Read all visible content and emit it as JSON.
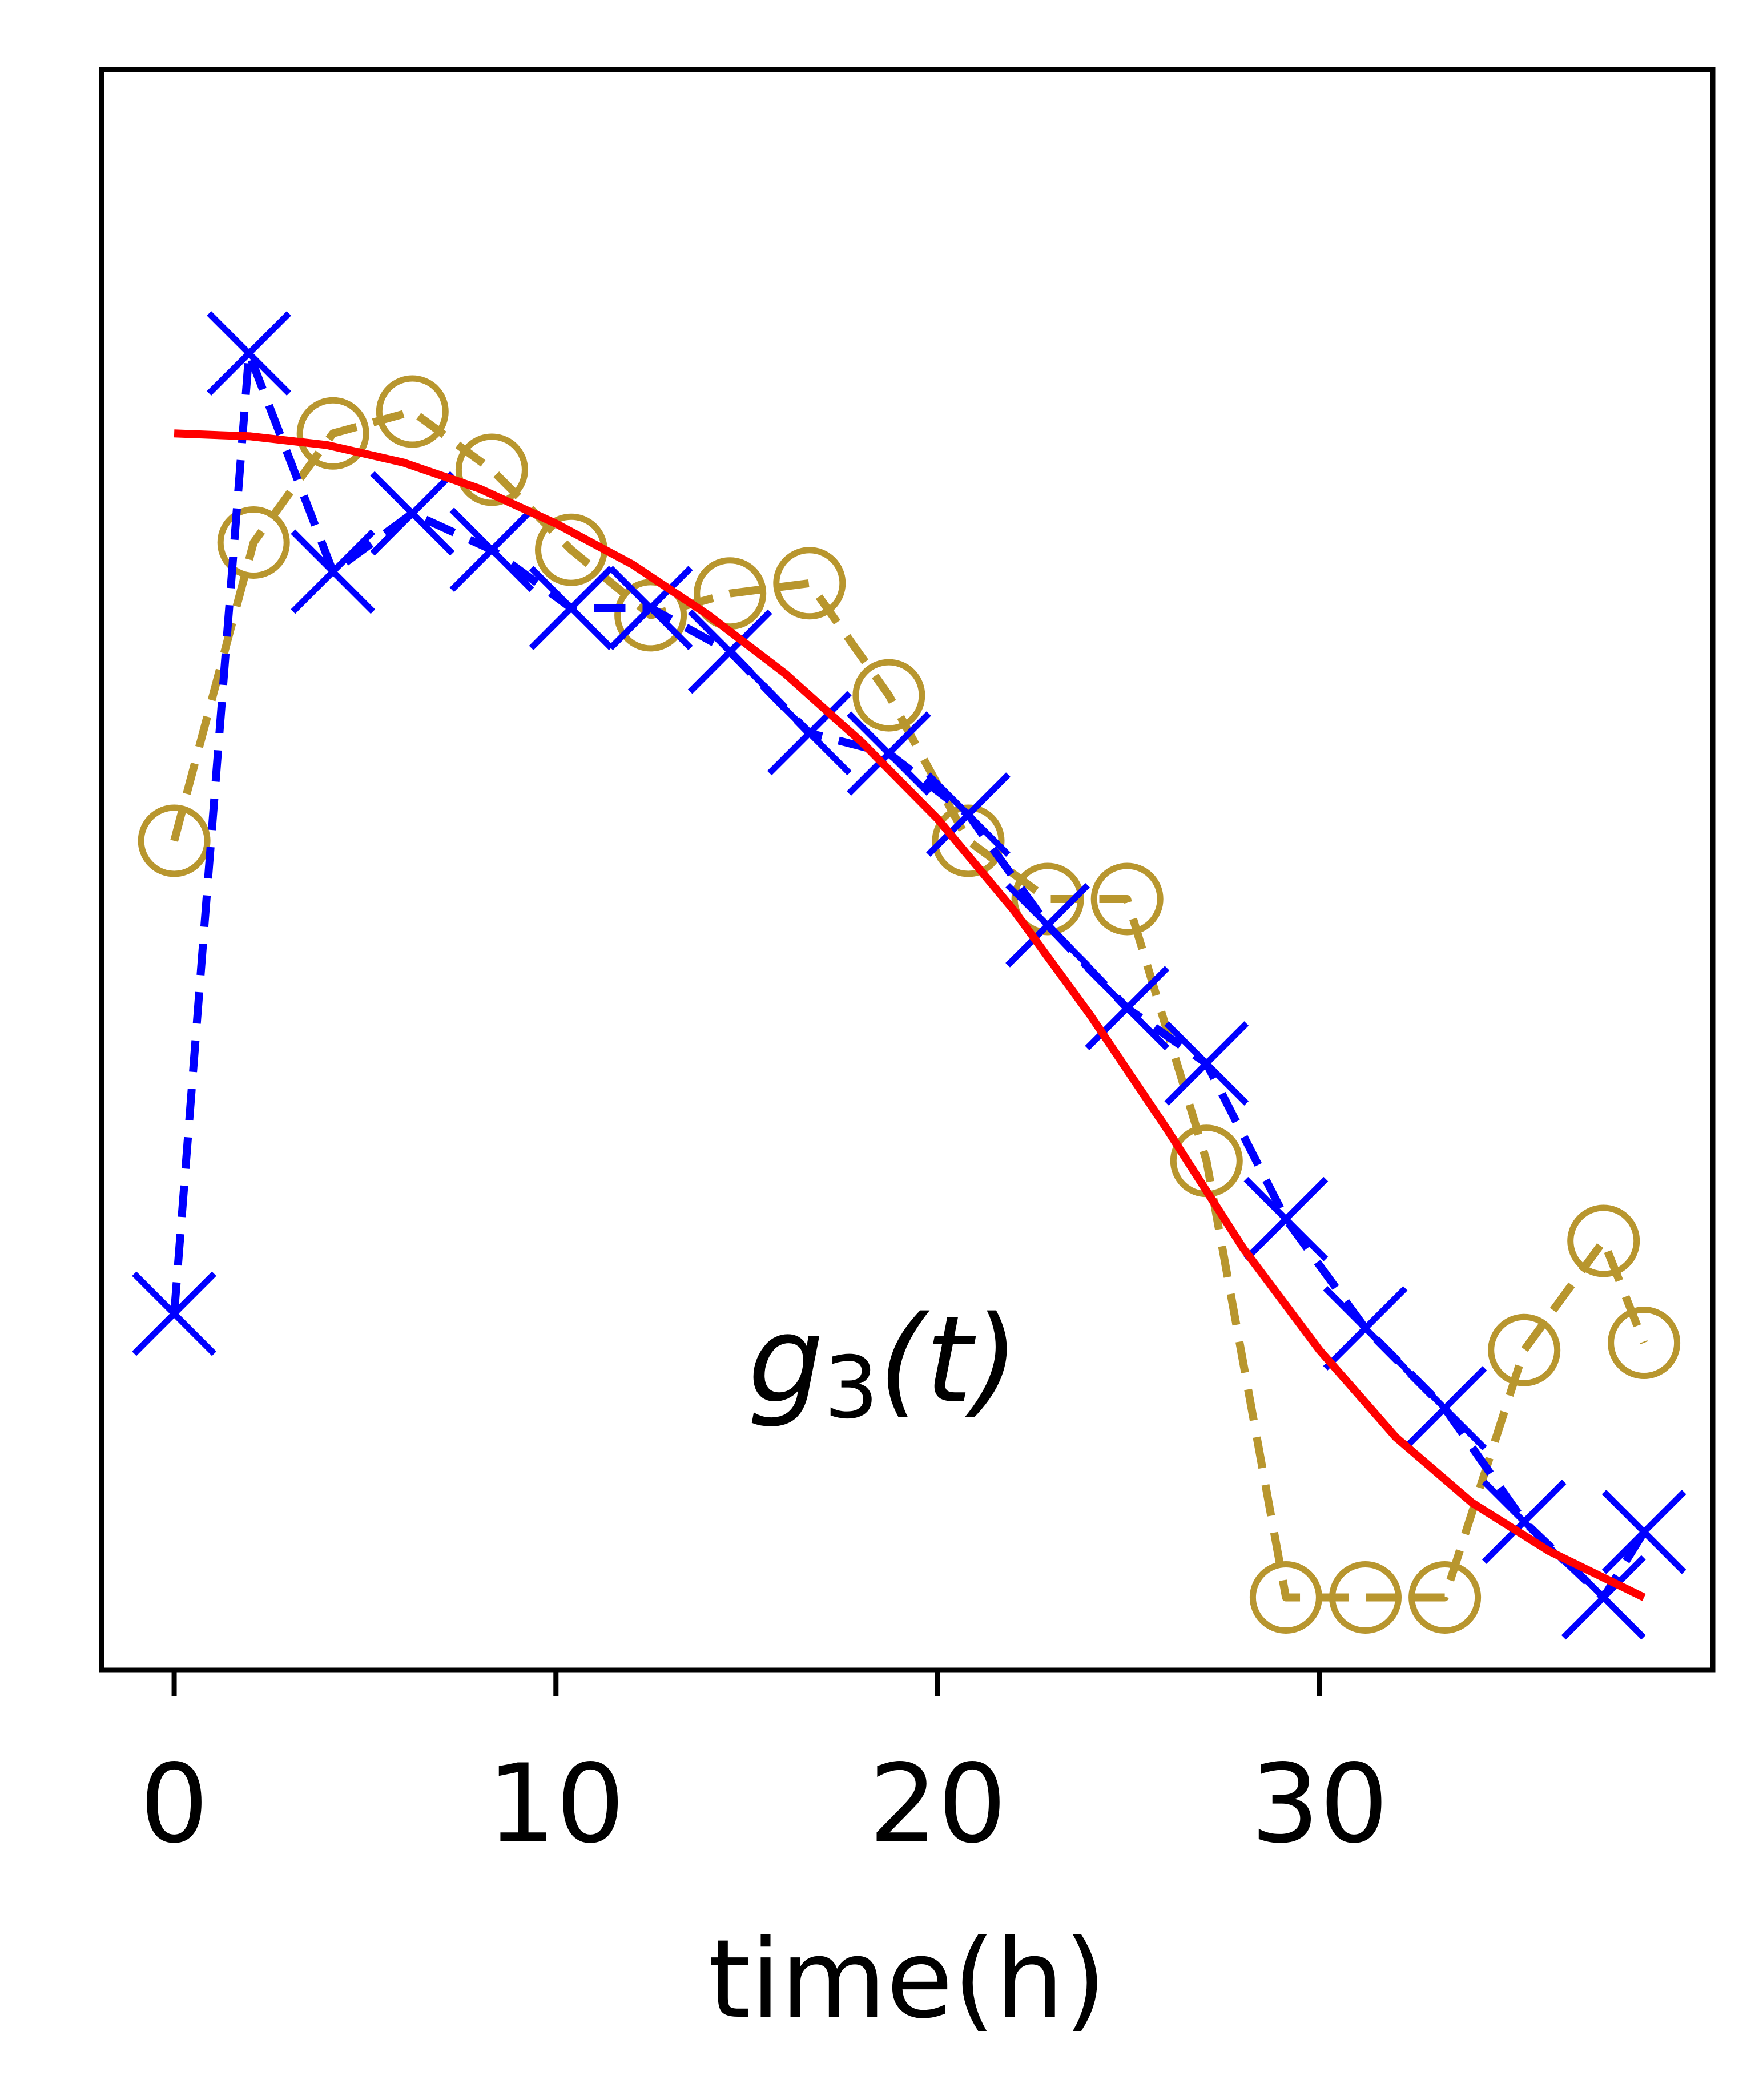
{
  "chart_data": {
    "type": "line",
    "xlabel": "time(h)",
    "ylabel": "",
    "xlim": [
      -1.9,
      40.3
    ],
    "ylim": [
      -0.05,
      1.05
    ],
    "x_ticks": [
      0,
      10,
      20,
      30
    ],
    "x_tick_labels": [
      "0",
      "10",
      "20",
      "30"
    ],
    "y_ticks_shown": false,
    "grid": false,
    "annotation": {
      "base": "g",
      "sub": "3",
      "arg": "(t)"
    },
    "series": [
      {
        "color": "#b8962e",
        "linestyle": "dashed",
        "marker": "circle-open",
        "x": [
          0.0,
          2.08,
          4.16,
          6.24,
          8.32,
          10.4,
          12.48,
          14.56,
          16.64,
          18.72,
          20.8,
          22.88,
          24.96,
          27.04,
          29.12,
          31.2,
          33.28,
          35.36,
          37.44,
          38.5
        ],
        "y": [
          0.52,
          0.725,
          0.8,
          0.815,
          0.775,
          0.72,
          0.675,
          0.69,
          0.697,
          0.62,
          0.52,
          0.48,
          0.48,
          0.3,
          0.0,
          0.0,
          0.0,
          0.17,
          0.245,
          0.175
        ]
      },
      {
        "color": "#0000ff",
        "linestyle": "dashed",
        "marker": "x",
        "x": [
          0.0,
          1.96,
          4.16,
          6.24,
          8.32,
          10.4,
          12.48,
          14.56,
          16.64,
          18.72,
          20.8,
          22.88,
          24.96,
          27.04,
          29.12,
          31.2,
          33.28,
          35.36,
          37.44,
          38.5
        ],
        "y": [
          0.195,
          0.855,
          0.705,
          0.745,
          0.72,
          0.68,
          0.68,
          0.65,
          0.594,
          0.58,
          0.538,
          0.462,
          0.405,
          0.367,
          0.26,
          0.185,
          0.13,
          0.052,
          0.0,
          0.045
        ]
      },
      {
        "color": "#ff0000",
        "linestyle": "solid",
        "marker": "none",
        "x": [
          0,
          2,
          4,
          6,
          8,
          10,
          12,
          14,
          16,
          18,
          20,
          22,
          24,
          26,
          28,
          30,
          32,
          34,
          36,
          38.5
        ],
        "y": [
          0.8,
          0.798,
          0.792,
          0.78,
          0.762,
          0.738,
          0.71,
          0.675,
          0.635,
          0.588,
          0.535,
          0.472,
          0.4,
          0.322,
          0.24,
          0.17,
          0.11,
          0.065,
          0.032,
          0.0
        ]
      }
    ]
  }
}
